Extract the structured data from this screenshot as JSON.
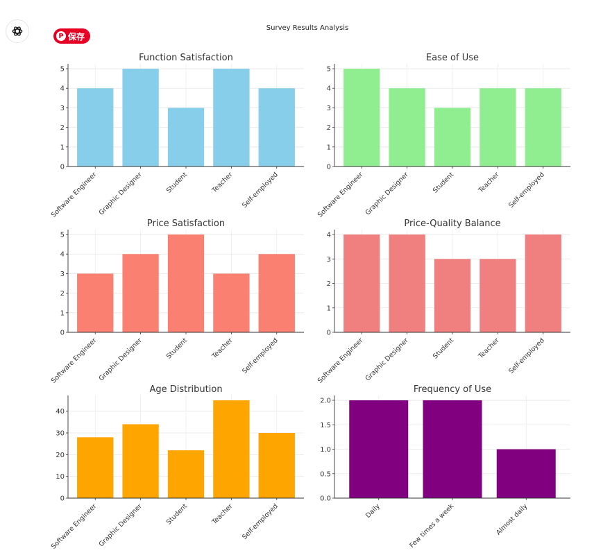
{
  "suptitle": "Survey Results Analysis",
  "save_button": {
    "label": "保存",
    "icon": "pinterest-icon"
  },
  "logo": {
    "icon": "openai-logo-icon"
  },
  "chart_data": [
    {
      "type": "bar",
      "title": "Function Satisfaction",
      "categories": [
        "Software Engineer",
        "Graphic Designer",
        "Student",
        "Teacher",
        "Self-employed"
      ],
      "values": [
        4,
        5,
        3,
        5,
        4
      ],
      "ylim": [
        0,
        5.25
      ],
      "yticks": [
        "0",
        "1",
        "2",
        "3",
        "4",
        "5"
      ],
      "color": "#87ceeb",
      "grid": true
    },
    {
      "type": "bar",
      "title": "Ease of Use",
      "categories": [
        "Software Engineer",
        "Graphic Designer",
        "Student",
        "Teacher",
        "Self-employed"
      ],
      "values": [
        5,
        4,
        3,
        4,
        4
      ],
      "ylim": [
        0,
        5.25
      ],
      "yticks": [
        "0",
        "1",
        "2",
        "3",
        "4",
        "5"
      ],
      "color": "#90ee90",
      "grid": true
    },
    {
      "type": "bar",
      "title": "Price Satisfaction",
      "categories": [
        "Software Engineer",
        "Graphic Designer",
        "Student",
        "Teacher",
        "Self-employed"
      ],
      "values": [
        3,
        4,
        5,
        3,
        4
      ],
      "ylim": [
        0,
        5.25
      ],
      "yticks": [
        "0",
        "1",
        "2",
        "3",
        "4",
        "5"
      ],
      "color": "#fa8072",
      "grid": true
    },
    {
      "type": "bar",
      "title": "Price-Quality Balance",
      "categories": [
        "Software Engineer",
        "Graphic Designer",
        "Student",
        "Teacher",
        "Self-employed"
      ],
      "values": [
        4,
        4,
        3,
        3,
        4
      ],
      "ylim": [
        0,
        4.2
      ],
      "yticks": [
        "0",
        "1",
        "2",
        "3",
        "4"
      ],
      "color": "#f08080",
      "grid": true
    },
    {
      "type": "bar",
      "title": "Age Distribution",
      "categories": [
        "Software Engineer",
        "Graphic Designer",
        "Student",
        "Teacher",
        "Self-employed"
      ],
      "values": [
        28,
        34,
        22,
        45,
        30
      ],
      "ylim": [
        0,
        47.25
      ],
      "yticks": [
        "0",
        "10",
        "20",
        "30",
        "40"
      ],
      "color": "#ffa500",
      "grid": true
    },
    {
      "type": "bar",
      "title": "Frequency of Use",
      "categories": [
        "Daily",
        "Few times a week",
        "Almost daily"
      ],
      "values": [
        2,
        2,
        1
      ],
      "ylim": [
        0,
        2.1
      ],
      "yticks": [
        "0.0",
        "0.5",
        "1.0",
        "1.5",
        "2.0"
      ],
      "color": "#800080",
      "grid": true
    }
  ]
}
